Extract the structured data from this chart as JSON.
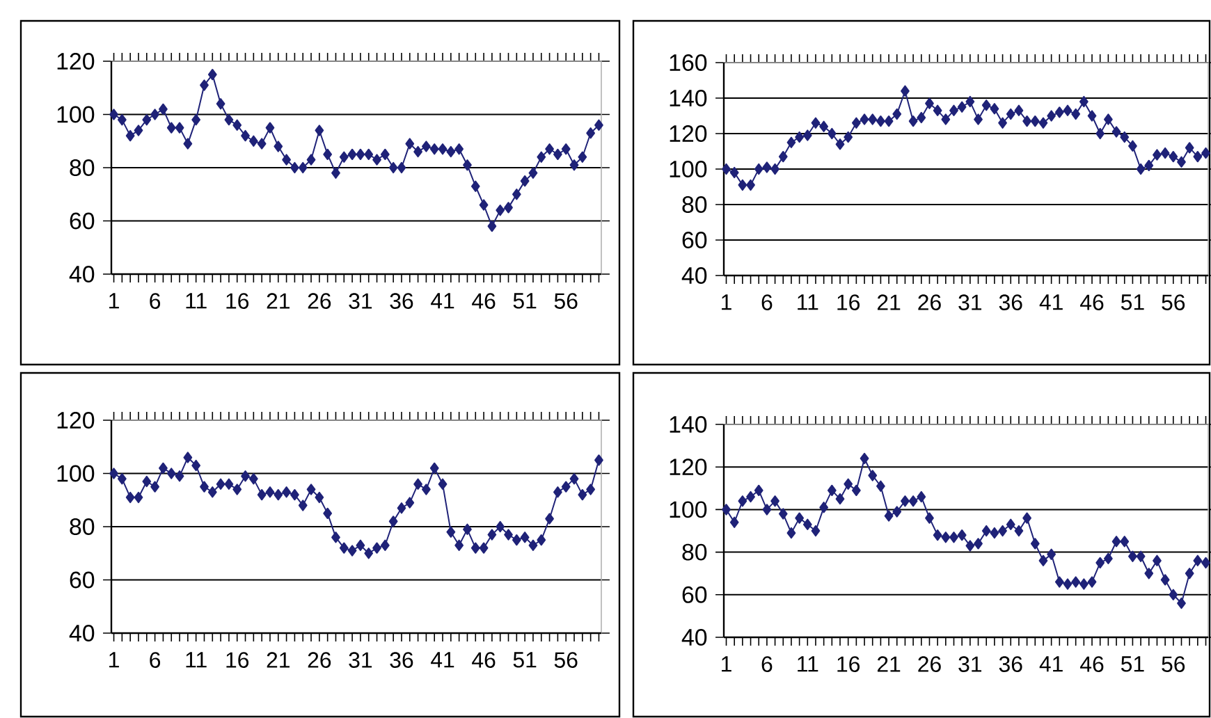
{
  "chart_data": [
    {
      "type": "line",
      "categories": [
        "1",
        null,
        null,
        null,
        null,
        "6",
        null,
        null,
        null,
        null,
        "11",
        null,
        null,
        null,
        null,
        "16",
        null,
        null,
        null,
        null,
        "21",
        null,
        null,
        null,
        null,
        "26",
        null,
        null,
        null,
        null,
        "31",
        null,
        null,
        null,
        null,
        "36",
        null,
        null,
        null,
        null,
        "41",
        null,
        null,
        null,
        null,
        "46",
        null,
        null,
        null,
        null,
        "51",
        null,
        null,
        null,
        null,
        "56",
        null,
        null,
        null,
        null
      ],
      "values": [
        100,
        98,
        92,
        94,
        98,
        100,
        102,
        95,
        95,
        89,
        98,
        111,
        115,
        104,
        98,
        96,
        92,
        90,
        89,
        95,
        88,
        83,
        80,
        80,
        83,
        94,
        85,
        78,
        84,
        85,
        85,
        85,
        83,
        85,
        80,
        80,
        89,
        86,
        88,
        87,
        87,
        86,
        87,
        81,
        73,
        66,
        58,
        64,
        65,
        70,
        75,
        78,
        84,
        87,
        85,
        87,
        81,
        84,
        93,
        96
      ],
      "color": "#1f2278",
      "marker": "diamond",
      "grid": "y",
      "ylim": [
        40,
        120
      ],
      "yticks": [
        40,
        60,
        80,
        100,
        120
      ]
    },
    {
      "type": "line",
      "categories": [
        "1",
        null,
        null,
        null,
        null,
        "6",
        null,
        null,
        null,
        null,
        "11",
        null,
        null,
        null,
        null,
        "16",
        null,
        null,
        null,
        null,
        "21",
        null,
        null,
        null,
        null,
        "26",
        null,
        null,
        null,
        null,
        "31",
        null,
        null,
        null,
        null,
        "36",
        null,
        null,
        null,
        null,
        "41",
        null,
        null,
        null,
        null,
        "46",
        null,
        null,
        null,
        null,
        "51",
        null,
        null,
        null,
        null,
        "56",
        null,
        null,
        null,
        null
      ],
      "values": [
        100,
        98,
        91,
        91,
        100,
        101,
        100,
        107,
        115,
        118,
        119,
        126,
        124,
        120,
        114,
        118,
        126,
        128,
        128,
        127,
        127,
        131,
        144,
        127,
        129,
        137,
        133,
        128,
        133,
        135,
        138,
        128,
        136,
        134,
        126,
        131,
        133,
        127,
        127,
        126,
        130,
        132,
        133,
        131,
        138,
        130,
        120,
        128,
        121,
        118,
        113,
        100,
        102,
        108,
        109,
        107,
        104,
        112,
        107,
        109
      ],
      "color": "#1f2278",
      "marker": "diamond",
      "grid": "y",
      "ylim": [
        40,
        160
      ],
      "yticks": [
        40,
        60,
        80,
        100,
        120,
        140,
        160
      ]
    },
    {
      "type": "line",
      "categories": [
        "1",
        null,
        null,
        null,
        null,
        "6",
        null,
        null,
        null,
        null,
        "11",
        null,
        null,
        null,
        null,
        "16",
        null,
        null,
        null,
        null,
        "21",
        null,
        null,
        null,
        null,
        "26",
        null,
        null,
        null,
        null,
        "31",
        null,
        null,
        null,
        null,
        "36",
        null,
        null,
        null,
        null,
        "41",
        null,
        null,
        null,
        null,
        "46",
        null,
        null,
        null,
        null,
        "51",
        null,
        null,
        null,
        null,
        "56",
        null,
        null,
        null,
        null
      ],
      "values": [
        100,
        98,
        91,
        91,
        97,
        95,
        102,
        100,
        99,
        106,
        103,
        95,
        93,
        96,
        96,
        94,
        99,
        98,
        92,
        93,
        92,
        93,
        92,
        88,
        94,
        91,
        85,
        76,
        72,
        71,
        73,
        70,
        72,
        73,
        82,
        87,
        89,
        96,
        94,
        102,
        96,
        78,
        73,
        79,
        72,
        72,
        77,
        80,
        77,
        75,
        76,
        73,
        75,
        83,
        93,
        95,
        98,
        92,
        94,
        105
      ],
      "color": "#1f2278",
      "marker": "diamond",
      "grid": "y",
      "ylim": [
        40,
        120
      ],
      "yticks": [
        40,
        60,
        80,
        100,
        120
      ]
    },
    {
      "type": "line",
      "categories": [
        "1",
        null,
        null,
        null,
        null,
        "6",
        null,
        null,
        null,
        null,
        "11",
        null,
        null,
        null,
        null,
        "16",
        null,
        null,
        null,
        null,
        "21",
        null,
        null,
        null,
        null,
        "26",
        null,
        null,
        null,
        null,
        "31",
        null,
        null,
        null,
        null,
        "36",
        null,
        null,
        null,
        null,
        "41",
        null,
        null,
        null,
        null,
        "46",
        null,
        null,
        null,
        null,
        "51",
        null,
        null,
        null,
        null,
        "56",
        null,
        null,
        null,
        null
      ],
      "values": [
        100,
        94,
        104,
        106,
        109,
        100,
        104,
        98,
        89,
        96,
        93,
        90,
        101,
        109,
        105,
        112,
        109,
        124,
        116,
        111,
        97,
        99,
        104,
        104,
        106,
        96,
        88,
        87,
        87,
        88,
        83,
        84,
        90,
        89,
        90,
        93,
        90,
        96,
        84,
        76,
        79,
        66,
        65,
        66,
        65,
        66,
        75,
        77,
        85,
        85,
        78,
        78,
        70,
        76,
        67,
        60,
        56,
        70,
        76,
        75
      ],
      "color": "#1f2278",
      "marker": "diamond",
      "grid": "y",
      "ylim": [
        40,
        140
      ],
      "yticks": [
        40,
        60,
        80,
        100,
        120,
        140
      ]
    }
  ]
}
